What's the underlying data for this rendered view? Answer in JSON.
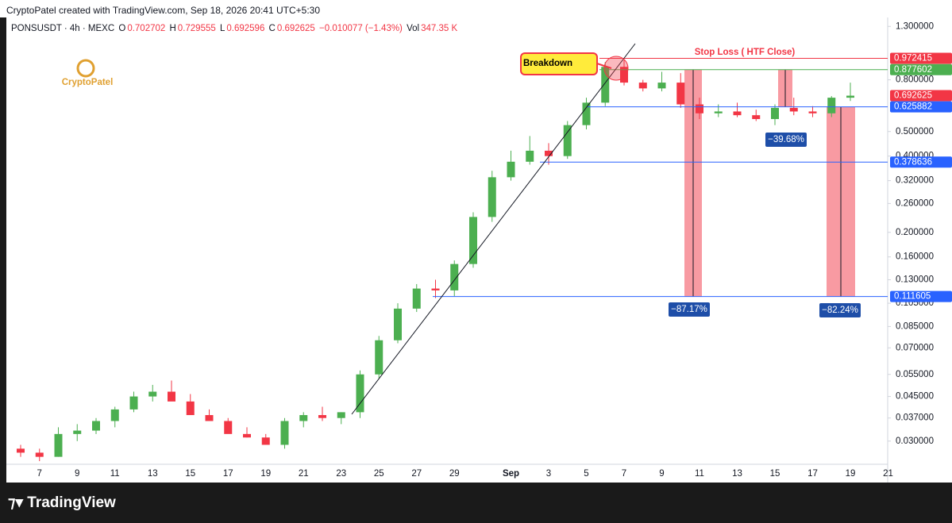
{
  "header": {
    "credit": "CryptoPatel created with TradingView.com, Sep 18, 2026 20:41 UTC+5:30"
  },
  "legend": {
    "symbol": "PONSUSDT · 4h · MEXC",
    "o_label": "O",
    "o": "0.702702",
    "h_label": "H",
    "h": "0.729555",
    "l_label": "L",
    "l": "0.692596",
    "c_label": "C",
    "c": "0.692625",
    "change": "−0.010077 (−1.43%)",
    "vol_label": "Vol",
    "vol": "347.35 K"
  },
  "watermark": "CryptoPatel",
  "footer": "TradingView",
  "chart_data": {
    "type": "candlestick",
    "log_scale": true,
    "up_color": "#4caf50",
    "down_color": "#f23645",
    "categories": [
      null,
      "7",
      null,
      "9",
      null,
      "11",
      null,
      "13",
      null,
      "15",
      null,
      "17",
      null,
      "19",
      null,
      "21",
      null,
      "23",
      null,
      "25",
      null,
      "27",
      null,
      "29",
      null,
      null,
      "Sep",
      null,
      "3",
      null,
      "5",
      null,
      "7",
      null,
      "9",
      null,
      "11",
      null,
      "13",
      null,
      "15",
      null,
      "17",
      null,
      "19",
      null,
      "21"
    ],
    "open": [
      0.028,
      0.027,
      0.026,
      0.032,
      0.033,
      0.036,
      0.04,
      0.045,
      0.047,
      0.043,
      0.038,
      0.036,
      0.032,
      0.031,
      0.029,
      0.036,
      0.038,
      0.037,
      0.039,
      0.055,
      0.075,
      0.1,
      0.12,
      0.118,
      0.15,
      0.23,
      0.33,
      0.38,
      0.42,
      0.4,
      0.53,
      0.65,
      0.9,
      0.78,
      0.74,
      0.78,
      0.64,
      0.59,
      0.6,
      0.58,
      0.56,
      0.62,
      0.6,
      0.59,
      0.68,
      null,
      null
    ],
    "high": [
      0.029,
      0.028,
      0.034,
      0.035,
      0.037,
      0.041,
      0.047,
      0.05,
      0.052,
      0.046,
      0.04,
      0.037,
      0.034,
      0.032,
      0.037,
      0.039,
      0.041,
      0.039,
      0.057,
      0.078,
      0.105,
      0.125,
      0.13,
      0.155,
      0.24,
      0.35,
      0.42,
      0.48,
      0.45,
      0.55,
      0.68,
      0.94,
      0.96,
      0.8,
      0.86,
      0.85,
      0.68,
      0.64,
      0.65,
      0.61,
      0.64,
      0.68,
      0.63,
      0.69,
      0.78,
      null,
      null
    ],
    "low": [
      0.026,
      0.025,
      0.026,
      0.03,
      0.032,
      0.034,
      0.039,
      0.043,
      0.045,
      0.04,
      0.036,
      0.034,
      0.031,
      0.029,
      0.028,
      0.034,
      0.036,
      0.035,
      0.037,
      0.053,
      0.073,
      0.097,
      0.11,
      0.112,
      0.145,
      0.22,
      0.32,
      0.37,
      0.37,
      0.39,
      0.51,
      0.63,
      0.76,
      0.72,
      0.72,
      0.62,
      0.56,
      0.57,
      0.57,
      0.55,
      0.53,
      0.58,
      0.57,
      0.57,
      0.66,
      null,
      null
    ],
    "close": [
      0.027,
      0.026,
      0.032,
      0.033,
      0.036,
      0.04,
      0.045,
      0.047,
      0.043,
      0.038,
      0.036,
      0.032,
      0.031,
      0.029,
      0.036,
      0.038,
      0.037,
      0.039,
      0.055,
      0.075,
      0.1,
      0.12,
      0.118,
      0.15,
      0.23,
      0.33,
      0.38,
      0.42,
      0.4,
      0.53,
      0.65,
      0.9,
      0.78,
      0.74,
      0.78,
      0.64,
      0.59,
      0.6,
      0.58,
      0.56,
      0.62,
      0.6,
      0.59,
      0.68,
      0.692625,
      null,
      null
    ],
    "ylim": [
      0.0243,
      1.41
    ],
    "yticks": [
      {
        "value": 1.3,
        "label": "1.300000"
      },
      {
        "value": 0.8,
        "label": "0.800000"
      },
      {
        "value": 0.5,
        "label": "0.500000"
      },
      {
        "value": 0.4,
        "label": "0.400000"
      },
      {
        "value": 0.32,
        "label": "0.320000"
      },
      {
        "value": 0.26,
        "label": "0.260000"
      },
      {
        "value": 0.2,
        "label": "0.200000"
      },
      {
        "value": 0.16,
        "label": "0.160000"
      },
      {
        "value": 0.13,
        "label": "0.130000"
      },
      {
        "value": 0.105,
        "label": "0.105000"
      },
      {
        "value": 0.085,
        "label": "0.085000"
      },
      {
        "value": 0.07,
        "label": "0.070000"
      },
      {
        "value": 0.055,
        "label": "0.055000"
      },
      {
        "value": 0.045,
        "label": "0.045000"
      },
      {
        "value": 0.037,
        "label": "0.037000"
      },
      {
        "value": 0.03,
        "label": "0.030000"
      }
    ],
    "levels": [
      {
        "value": 0.972415,
        "color": "#f23645"
      },
      {
        "value": 0.877602,
        "color": "#4caf50"
      },
      {
        "value": 0.692625,
        "color": "#f23645"
      },
      {
        "value": 0.625882,
        "color": "#2962ff"
      },
      {
        "value": 0.378636,
        "color": "#2962ff"
      },
      {
        "value": 0.111605,
        "color": "#2962ff"
      }
    ],
    "annotations": {
      "breakdown": "Breakdown",
      "stop_loss": "Stop Loss ( HTF Close)",
      "drop_1": "−87.17%",
      "drop_2": "−39.68%",
      "drop_3": "−82.24%"
    }
  }
}
